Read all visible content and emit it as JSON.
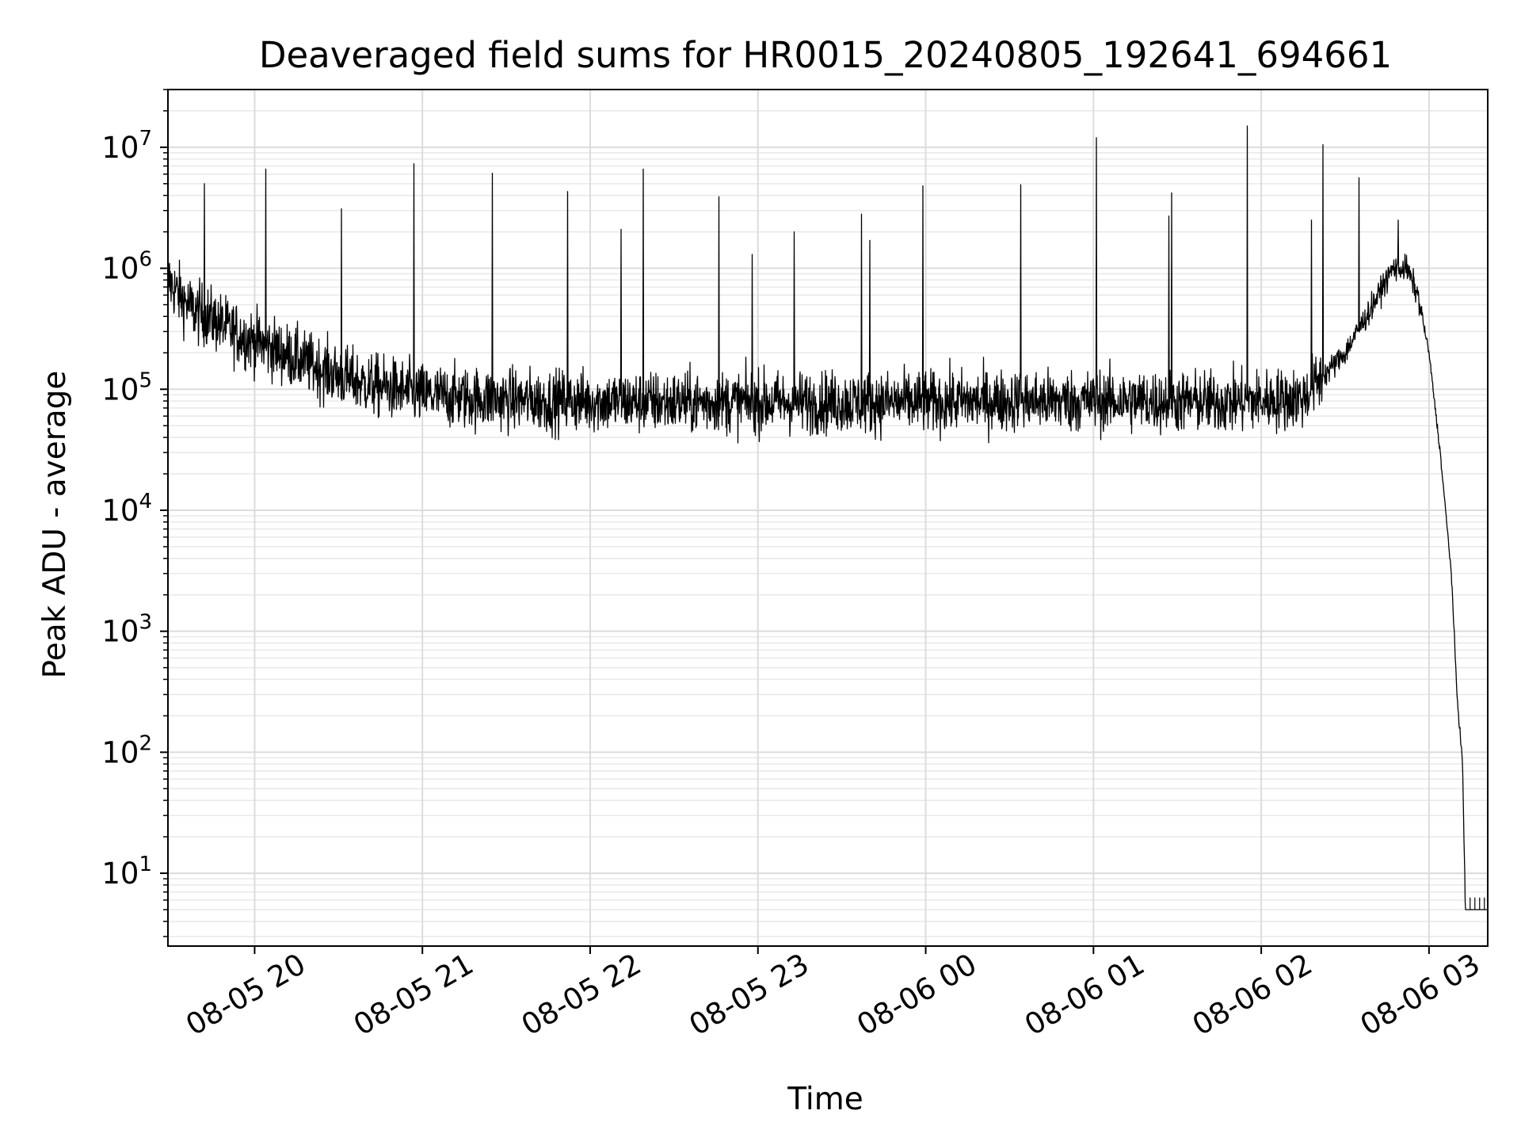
{
  "chart_data": {
    "type": "line",
    "title": "Deaveraged field sums for HR0015_20240805_192641_694661",
    "xlabel": "Time",
    "ylabel": "Peak ADU - average",
    "yscale": "log",
    "ylim": [
      2.5,
      30000000
    ],
    "xlim": [
      "08-05 19:29",
      "08-06 03:21"
    ],
    "grid": true,
    "legend": "none",
    "line_color": "#000000",
    "x_ticks": [
      "08-05 20",
      "08-05 21",
      "08-05 22",
      "08-05 23",
      "08-06 00",
      "08-06 01",
      "08-06 02",
      "08-06 03"
    ],
    "y_ticks": [
      {
        "base": "10",
        "exp": "1",
        "value": 10
      },
      {
        "base": "10",
        "exp": "2",
        "value": 100
      },
      {
        "base": "10",
        "exp": "3",
        "value": 1000
      },
      {
        "base": "10",
        "exp": "4",
        "value": 10000
      },
      {
        "base": "10",
        "exp": "5",
        "value": 100000
      },
      {
        "base": "10",
        "exp": "6",
        "value": 1000000
      },
      {
        "base": "10",
        "exp": "7",
        "value": 10000000
      }
    ],
    "series": [
      {
        "x": [
          "08-05 19:29",
          "08-05 19:33",
          "08-05 19:38",
          "08-05 19:45",
          "08-05 19:52",
          "08-05 20:00",
          "08-05 20:10",
          "08-05 20:20",
          "08-05 20:30",
          "08-05 20:40",
          "08-05 20:50",
          "08-05 21:00",
          "08-05 21:15",
          "08-05 21:30",
          "08-05 21:45",
          "08-05 22:00",
          "08-05 22:20",
          "08-05 22:40",
          "08-05 23:00",
          "08-05 23:20",
          "08-05 23:40",
          "08-06 00:00",
          "08-06 00:20",
          "08-06 00:40",
          "08-06 01:00",
          "08-06 01:20",
          "08-06 01:40",
          "08-06 02:00",
          "08-06 02:15",
          "08-06 02:30",
          "08-06 02:40",
          "08-06 02:47",
          "08-06 02:52",
          "08-06 02:56",
          "08-06 03:00",
          "08-06 03:04",
          "08-06 03:08",
          "08-06 03:10",
          "08-06 03:12",
          "08-06 03:13",
          "08-06 03:21"
        ],
        "y": [
          800000,
          600000,
          450000,
          380000,
          300000,
          250000,
          200000,
          160000,
          130000,
          110000,
          100000,
          90000,
          85000,
          82000,
          80000,
          80000,
          78000,
          78000,
          78000,
          78000,
          78000,
          78000,
          80000,
          80000,
          80000,
          80000,
          78000,
          80000,
          85000,
          200000,
          500000,
          1000000,
          1000000,
          600000,
          200000,
          30000,
          3000,
          300,
          80,
          5,
          5
        ]
      }
    ],
    "spikes": [
      {
        "x": "08-05 19:42",
        "y": 5000000
      },
      {
        "x": "08-05 20:04",
        "y": 6600000
      },
      {
        "x": "08-05 20:31",
        "y": 3100000
      },
      {
        "x": "08-05 20:57",
        "y": 7300000
      },
      {
        "x": "08-05 21:25",
        "y": 6100000
      },
      {
        "x": "08-05 21:52",
        "y": 4300000
      },
      {
        "x": "08-05 22:11",
        "y": 2100000
      },
      {
        "x": "08-05 22:19",
        "y": 6600000
      },
      {
        "x": "08-05 22:46",
        "y": 3900000
      },
      {
        "x": "08-05 22:58",
        "y": 1300000
      },
      {
        "x": "08-05 23:13",
        "y": 2000000
      },
      {
        "x": "08-05 23:37",
        "y": 2800000
      },
      {
        "x": "08-05 23:40",
        "y": 1700000
      },
      {
        "x": "08-05 23:59",
        "y": 4800000
      },
      {
        "x": "08-06 00:34",
        "y": 4900000
      },
      {
        "x": "08-06 01:01",
        "y": 12000000
      },
      {
        "x": "08-06 01:27",
        "y": 2700000
      },
      {
        "x": "08-06 01:28",
        "y": 4200000
      },
      {
        "x": "08-06 01:55",
        "y": 15000000
      },
      {
        "x": "08-06 02:18",
        "y": 2500000
      },
      {
        "x": "08-06 02:22",
        "y": 10500000
      },
      {
        "x": "08-06 02:35",
        "y": 5600000
      },
      {
        "x": "08-06 02:49",
        "y": 2500000
      }
    ]
  }
}
